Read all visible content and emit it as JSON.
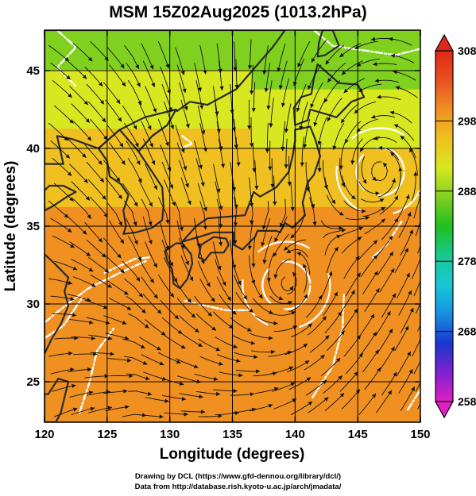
{
  "title": "MSM 15Z02Aug2025 (1013.2hPa)",
  "chart_data": {
    "type": "heatmap",
    "title": "MSM 15Z02Aug2025 (1013.2hPa)",
    "xlabel": "Longitude (degrees)",
    "ylabel": "Latitude  (degrees)",
    "xlim": [
      120,
      150
    ],
    "ylim": [
      22.4,
      47.6
    ],
    "x_ticks": [
      120,
      125,
      130,
      135,
      140,
      145,
      150
    ],
    "y_ticks": [
      25,
      30,
      35,
      40,
      45
    ],
    "x_tick_labels": [
      "120",
      "125",
      "130",
      "135",
      "140",
      "145",
      "150"
    ],
    "y_tick_labels": [
      "25",
      "30",
      "35",
      "40",
      "45"
    ],
    "grid": true,
    "colorbar": {
      "min": 258,
      "max": 308,
      "ticks": [
        258,
        268,
        278,
        288,
        298,
        308
      ],
      "tick_labels": [
        "258",
        "268",
        "278",
        "288",
        "298",
        "308"
      ],
      "colors": [
        "#e020c0",
        "#8020d0",
        "#1838d0",
        "#1890e0",
        "#18c8d8",
        "#18c890",
        "#20c020",
        "#80d020",
        "#d8e820",
        "#f0c020",
        "#f09020",
        "#e85020",
        "#e02818"
      ]
    },
    "vortices": [
      {
        "lon": 146.8,
        "lat": 38.5
      },
      {
        "lon": 139.3,
        "lat": 31.2
      }
    ],
    "land_color": "#2a2a2a",
    "stream_color": "#111111",
    "contour_color": "#ffffff"
  },
  "footer": {
    "line1": "Drawing by DCL (https://www.gfd-dennou.org/library/dcl/)",
    "line2": "Data from http://database.rish.kyoto-u.ac.jp/arch/jmadata/"
  }
}
